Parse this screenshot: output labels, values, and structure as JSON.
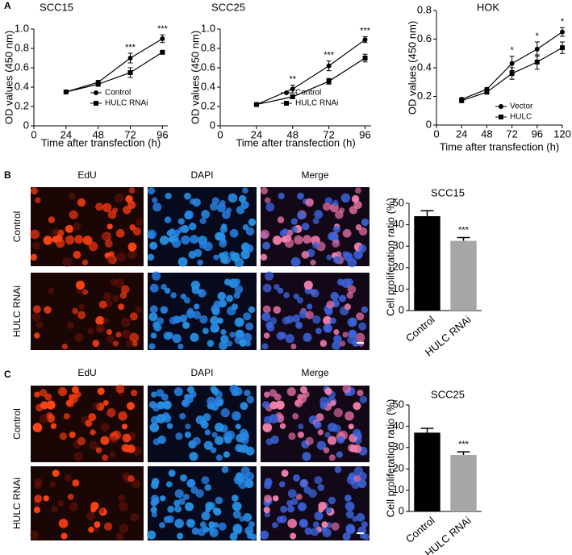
{
  "panel_letters": [
    "A",
    "B",
    "C"
  ],
  "image_panels": [
    {
      "columns": [
        "EdU",
        "DAPI",
        "Merge"
      ],
      "rows": [
        "Control",
        "HULC RNAi"
      ]
    },
    {
      "columns": [
        "EdU",
        "DAPI",
        "Merge"
      ],
      "rows": [
        "Control",
        "HULC RNAi"
      ]
    }
  ],
  "chart_data": [
    {
      "type": "line",
      "title": "SCC15",
      "x_label": "Time after transfection (h)",
      "y_label": "OD values (450 nm)",
      "x": [
        24,
        48,
        72,
        96
      ],
      "xlim": [
        0,
        100
      ],
      "xticks": [
        0,
        24,
        48,
        72,
        96
      ],
      "ylim": [
        0,
        1
      ],
      "yticks": [
        0,
        0.2,
        0.4,
        0.6,
        0.8,
        {
          "value": 1,
          "label": "1.0"
        }
      ],
      "legend": "lower right",
      "series": [
        {
          "name": "Control",
          "color": "#000000",
          "marker": "circle",
          "values": [
            0.35,
            0.45,
            0.7,
            0.9
          ],
          "errors": [
            0.02,
            0.02,
            0.05,
            0.04
          ]
        },
        {
          "name": "HULC RNAi",
          "color": "#000000",
          "marker": "square",
          "values": [
            0.35,
            0.43,
            0.55,
            0.76
          ],
          "errors": [
            0.02,
            0.02,
            0.05,
            0.01
          ]
        }
      ],
      "annotations": [
        null,
        null,
        "***",
        "***"
      ]
    },
    {
      "type": "line",
      "title": "SCC25",
      "x_label": "Time after transfection (h)",
      "y_label": "OD values (450 nm)",
      "x": [
        24,
        48,
        72,
        96
      ],
      "xlim": [
        0,
        100
      ],
      "xticks": [
        0,
        24,
        48,
        72,
        96
      ],
      "ylim": [
        0,
        1
      ],
      "yticks": [
        0,
        0.2,
        0.4,
        0.6,
        0.8,
        {
          "value": 1,
          "label": "1.0"
        }
      ],
      "legend": "lower right",
      "series": [
        {
          "name": "Control",
          "color": "#000000",
          "marker": "circle",
          "values": [
            0.22,
            0.38,
            0.62,
            0.89
          ],
          "errors": [
            0.01,
            0.04,
            0.05,
            0.03
          ]
        },
        {
          "name": "HULC RNAi",
          "color": "#000000",
          "marker": "square",
          "values": [
            0.22,
            0.3,
            0.46,
            0.7
          ],
          "errors": [
            0.01,
            0.01,
            0.03,
            0.04
          ]
        }
      ],
      "annotations": [
        null,
        "**",
        "***",
        "***"
      ]
    },
    {
      "type": "line",
      "title": "HOK",
      "x_label": "Time after transfection (h)",
      "y_label": "OD values (450 nm)",
      "x": [
        24,
        48,
        72,
        96,
        120
      ],
      "xlim": [
        0,
        120
      ],
      "xticks": [
        0,
        24,
        48,
        72,
        96,
        120
      ],
      "ylim": [
        0,
        0.8
      ],
      "yticks": [
        0,
        0.2,
        0.4,
        0.6,
        0.8
      ],
      "legend": "lower right",
      "series": [
        {
          "name": "Vector",
          "color": "#000000",
          "marker": "circle",
          "values": [
            0.18,
            0.25,
            0.43,
            0.53,
            0.65
          ],
          "errors": [
            0.01,
            0.01,
            0.05,
            0.05,
            0.03
          ]
        },
        {
          "name": "HULC",
          "color": "#000000",
          "marker": "square",
          "values": [
            0.17,
            0.23,
            0.36,
            0.44,
            0.54
          ],
          "errors": [
            0.01,
            0.01,
            0.04,
            0.05,
            0.04
          ]
        }
      ],
      "annotations": [
        null,
        null,
        "*",
        "*",
        "*"
      ]
    },
    {
      "type": "bar",
      "title": "SCC15",
      "y_label": "Cell proliferation ratio (%)",
      "categories": [
        "Control",
        "HULC RNAi"
      ],
      "values": [
        44,
        32.5
      ],
      "errors": [
        2.5,
        1.5
      ],
      "colors": [
        "#000000",
        "#a6a6a6"
      ],
      "ylim": [
        0,
        50
      ],
      "yticks": [
        0,
        10,
        20,
        30,
        40,
        50
      ],
      "annotations": [
        null,
        "***"
      ]
    },
    {
      "type": "bar",
      "title": "SCC25",
      "y_label": "Cell proliferation ratio (%)",
      "categories": [
        "Control",
        "HULC RNAi"
      ],
      "values": [
        37,
        26.5
      ],
      "errors": [
        2,
        1.5
      ],
      "colors": [
        "#000000",
        "#a6a6a6"
      ],
      "ylim": [
        0,
        50
      ],
      "yticks": [
        0,
        10,
        20,
        30,
        40,
        50
      ],
      "annotations": [
        null,
        "***"
      ]
    }
  ]
}
